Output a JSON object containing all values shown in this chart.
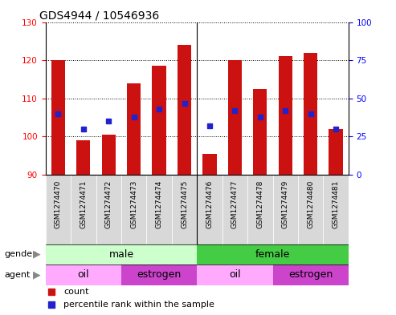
{
  "title": "GDS4944 / 10546936",
  "samples": [
    "GSM1274470",
    "GSM1274471",
    "GSM1274472",
    "GSM1274473",
    "GSM1274474",
    "GSM1274475",
    "GSM1274476",
    "GSM1274477",
    "GSM1274478",
    "GSM1274479",
    "GSM1274480",
    "GSM1274481"
  ],
  "bar_bottoms": [
    90,
    90,
    90,
    90,
    90,
    90,
    90,
    90,
    90,
    90,
    90,
    90
  ],
  "bar_tops": [
    120,
    99,
    100.5,
    114,
    118.5,
    124,
    95.5,
    120,
    112.5,
    121,
    122,
    102
  ],
  "percentile_right": [
    40,
    30,
    35,
    38,
    43,
    47,
    32,
    42,
    38,
    42,
    40,
    30
  ],
  "ylim_left": [
    90,
    130
  ],
  "ylim_right": [
    0,
    100
  ],
  "yticks_left": [
    90,
    100,
    110,
    120,
    130
  ],
  "yticks_right": [
    0,
    25,
    50,
    75,
    100
  ],
  "bar_color": "#CC1111",
  "percentile_color": "#2222CC",
  "gender_color_male": "#ccffcc",
  "gender_color_female": "#44cc44",
  "agent_color_oil": "#ffaaff",
  "agent_color_estrogen": "#cc44cc",
  "legend_count_label": "count",
  "legend_percentile_label": "percentile rank within the sample",
  "title_fontsize": 10,
  "tick_fontsize": 7.5
}
